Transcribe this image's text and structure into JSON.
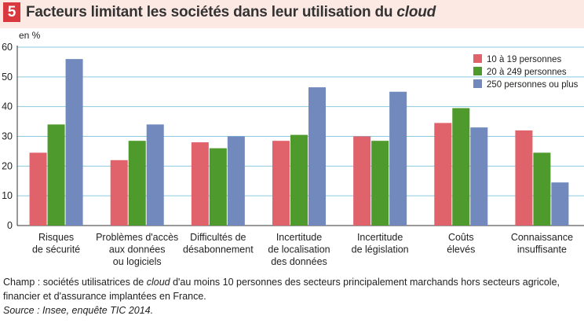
{
  "figure": {
    "number": "5",
    "title_main": "Facteurs limitant les sociétés dans leur utilisation du ",
    "title_italic": "cloud"
  },
  "chart_data": {
    "type": "bar",
    "yunit": "en %",
    "ylim": [
      0,
      60
    ],
    "yticks": [
      0,
      10,
      20,
      30,
      40,
      50,
      60
    ],
    "grid": true,
    "legend_position": "top-right",
    "categories": [
      [
        "Risques",
        "de sécurité"
      ],
      [
        "Problèmes d'accès",
        "aux données",
        "ou logiciels"
      ],
      [
        "Difficultés de",
        "désabonnement"
      ],
      [
        "Incertitude",
        "de localisation",
        "des données"
      ],
      [
        "Incertitude",
        "de législation"
      ],
      [
        "Coûts",
        "élevés"
      ],
      [
        "Connaissance",
        "insuffisante"
      ]
    ],
    "series": [
      {
        "name": "10 à 19 personnes",
        "color": "#e0636b",
        "values": [
          24.5,
          22,
          28,
          28.5,
          30,
          34.5,
          32
        ]
      },
      {
        "name": "20 à 249 personnes",
        "color": "#4f9a2c",
        "values": [
          34,
          28.5,
          26,
          30.5,
          28.5,
          39.5,
          24.5
        ]
      },
      {
        "name": "250 personnes ou plus",
        "color": "#7189bd",
        "values": [
          56,
          34,
          30,
          46.5,
          45,
          33,
          14.5
        ]
      }
    ]
  },
  "footnote": {
    "line1_a": "Champ : sociétés utilisatrices de ",
    "line1_it": "cloud",
    "line1_b": " d'au moins 10 personnes des secteurs principalement marchands hors secteurs agricole,",
    "line2": "financier et d'assurance implantées en France.",
    "source": "Source : Insee, enquête TIC 2014."
  }
}
